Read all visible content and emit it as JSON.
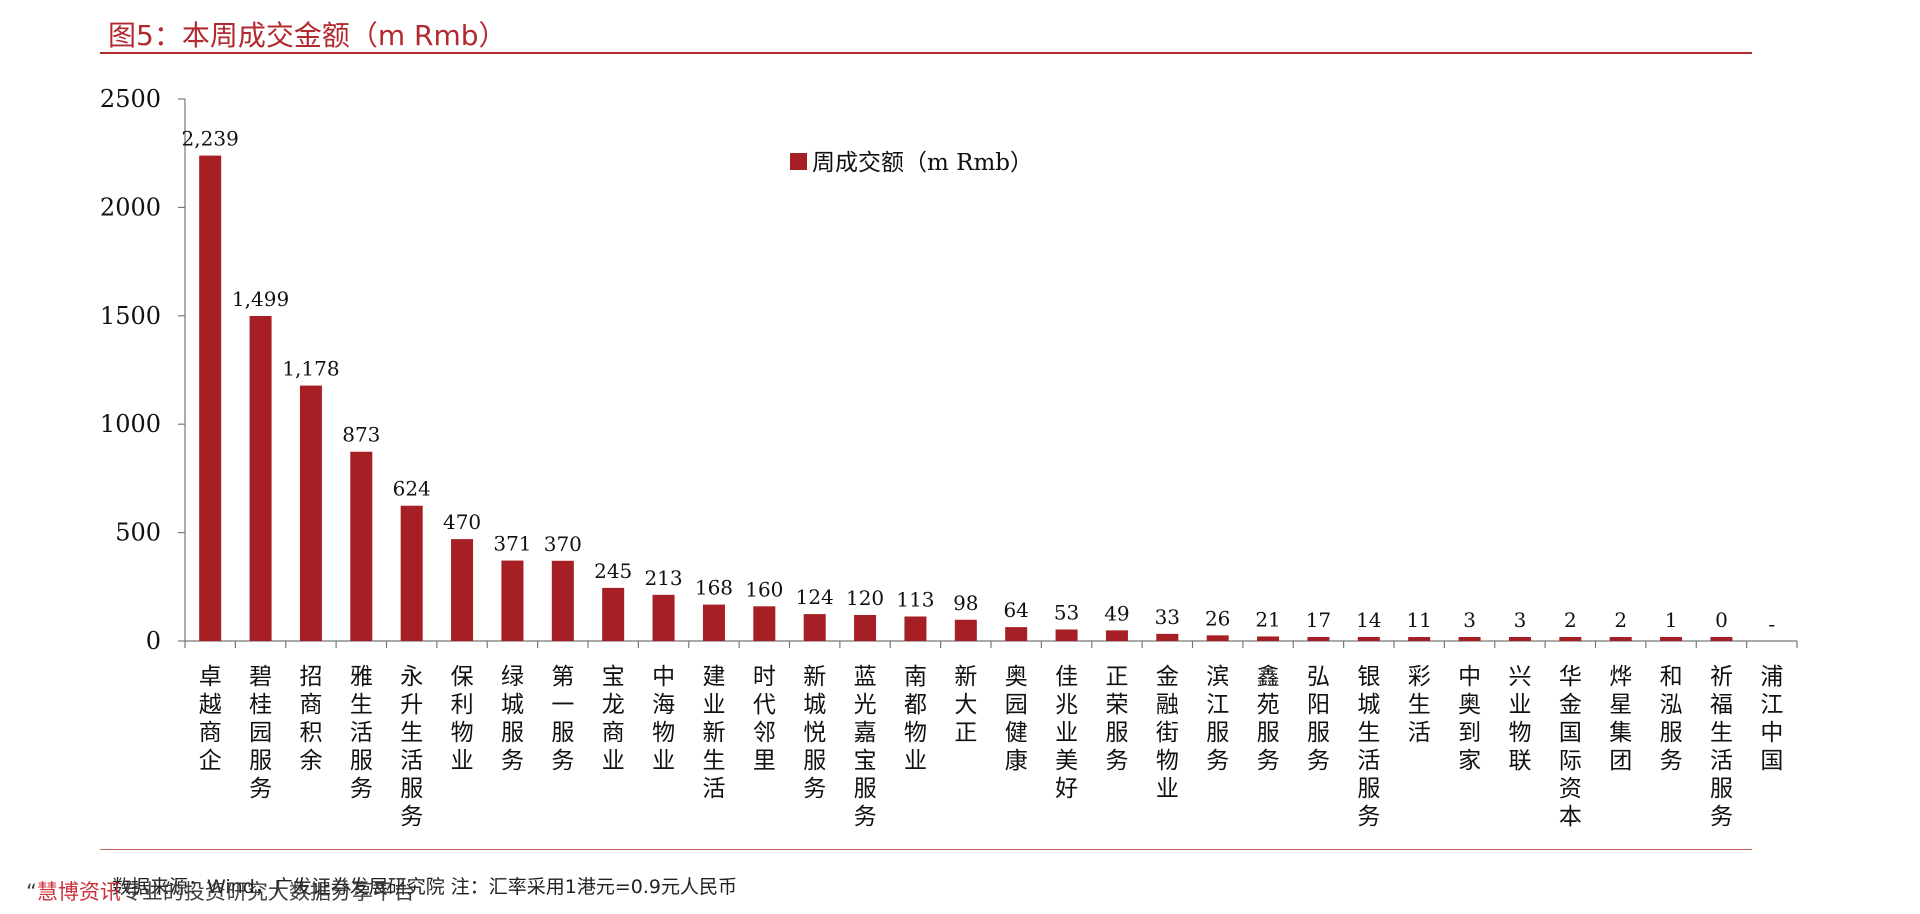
{
  "title": "图5：本周成交金额（m Rmb）",
  "source_note": "数据来源：Wind，广发证券发展研究院 注：汇率采用1港元=0.9元人民币",
  "watermark": {
    "prefix": "“",
    "brand": "慧博资讯",
    "tagline": "专业的投资研究大数据分享平台"
  },
  "colors": {
    "bar": "#a51f24",
    "title": "#b22a2f",
    "axis": "#777777"
  },
  "chart_data": {
    "type": "bar",
    "title": "图5：本周成交金额（m Rmb）",
    "xlabel": "",
    "ylabel": "",
    "ylim": [
      0,
      2500
    ],
    "yticks": [
      0,
      500,
      1000,
      1500,
      2000,
      2500
    ],
    "grid": false,
    "legend_position": "top-center",
    "categories": [
      "卓越商企",
      "碧桂园服务",
      "招商积余",
      "雅生活服务",
      "永升生活服务",
      "保利物业",
      "绿城服务",
      "第一服务",
      "宝龙商业",
      "中海物业",
      "建业新生活",
      "时代邻里",
      "新城悦服务",
      "蓝光嘉宝服务",
      "南都物业",
      "新大正",
      "奥园健康",
      "佳兆业美好",
      "正荣服务",
      "金融街物业",
      "滨江服务",
      "鑫苑服务",
      "弘阳服务",
      "银城生活服务",
      "彩生活",
      "中奥到家",
      "兴业物联",
      "华金国际资本",
      "烨星集团",
      "和泓服务",
      "祈福生活服务",
      "浦江中国"
    ],
    "series": [
      {
        "name": "周成交额（m Rmb）",
        "values": [
          2239,
          1499,
          1178,
          873,
          624,
          470,
          371,
          370,
          245,
          213,
          168,
          160,
          124,
          120,
          113,
          98,
          64,
          53,
          49,
          33,
          26,
          21,
          17,
          14,
          11,
          3,
          3,
          2,
          2,
          1,
          0,
          null
        ],
        "labels": [
          "2,239",
          "1,499",
          "1,178",
          "873",
          "624",
          "470",
          "371",
          "370",
          "245",
          "213",
          "168",
          "160",
          "124",
          "120",
          "113",
          "98",
          "64",
          "53",
          "49",
          "33",
          "26",
          "21",
          "17",
          "14",
          "11",
          "3",
          "3",
          "2",
          "2",
          "1",
          "0",
          "-"
        ]
      }
    ]
  }
}
